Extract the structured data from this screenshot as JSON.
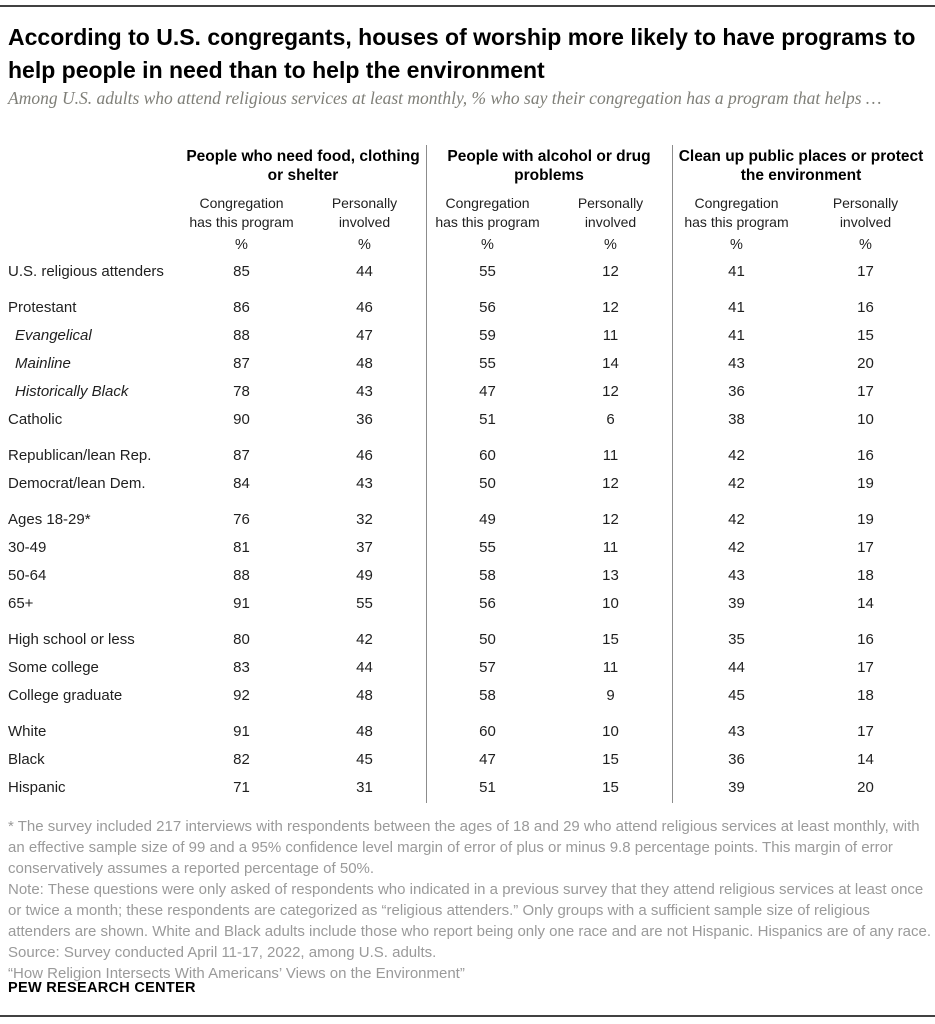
{
  "chart_data": {
    "type": "table",
    "title": "According to U.S. congregants, houses of worship more likely to have programs to help people in need than to help the environment",
    "subtitle": "Among U.S. adults who attend religious services at least monthly, % who say their congregation has a program that helps …",
    "unit": "%",
    "groups": [
      {
        "title": "People who need food, clothing or shelter"
      },
      {
        "title": "People with alcohol or drug problems"
      },
      {
        "title": "Clean up public places or protect the environment"
      }
    ],
    "subcolumns": [
      "Congregation has this program",
      "Personally involved"
    ],
    "columns": [
      "Food/clothing/shelter – Congregation has this program",
      "Food/clothing/shelter – Personally involved",
      "Alcohol/drug problems – Congregation has this program",
      "Alcohol/drug problems – Personally involved",
      "Clean up/protect environment – Congregation has this program",
      "Clean up/protect environment – Personally involved"
    ],
    "sections": [
      {
        "rows": [
          {
            "label": "U.S. religious attenders",
            "italic": false,
            "values": [
              85,
              44,
              55,
              12,
              41,
              17
            ]
          }
        ]
      },
      {
        "rows": [
          {
            "label": "Protestant",
            "italic": false,
            "values": [
              86,
              46,
              56,
              12,
              41,
              16
            ]
          },
          {
            "label": "Evangelical",
            "italic": true,
            "values": [
              88,
              47,
              59,
              11,
              41,
              15
            ]
          },
          {
            "label": "Mainline",
            "italic": true,
            "values": [
              87,
              48,
              55,
              14,
              43,
              20
            ]
          },
          {
            "label": "Historically Black",
            "italic": true,
            "values": [
              78,
              43,
              47,
              12,
              36,
              17
            ]
          },
          {
            "label": "Catholic",
            "italic": false,
            "values": [
              90,
              36,
              51,
              6,
              38,
              10
            ]
          }
        ]
      },
      {
        "rows": [
          {
            "label": "Republican/lean Rep.",
            "italic": false,
            "values": [
              87,
              46,
              60,
              11,
              42,
              16
            ]
          },
          {
            "label": "Democrat/lean Dem.",
            "italic": false,
            "values": [
              84,
              43,
              50,
              12,
              42,
              19
            ]
          }
        ]
      },
      {
        "rows": [
          {
            "label": "Ages 18-29*",
            "italic": false,
            "values": [
              76,
              32,
              49,
              12,
              42,
              19
            ]
          },
          {
            "label": "30-49",
            "italic": false,
            "values": [
              81,
              37,
              55,
              11,
              42,
              17
            ]
          },
          {
            "label": "50-64",
            "italic": false,
            "values": [
              88,
              49,
              58,
              13,
              43,
              18
            ]
          },
          {
            "label": "65+",
            "italic": false,
            "values": [
              91,
              55,
              56,
              10,
              39,
              14
            ]
          }
        ]
      },
      {
        "rows": [
          {
            "label": "High school or less",
            "italic": false,
            "values": [
              80,
              42,
              50,
              15,
              35,
              16
            ]
          },
          {
            "label": "Some college",
            "italic": false,
            "values": [
              83,
              44,
              57,
              11,
              44,
              17
            ]
          },
          {
            "label": "College graduate",
            "italic": false,
            "values": [
              92,
              48,
              58,
              9,
              45,
              18
            ]
          }
        ]
      },
      {
        "rows": [
          {
            "label": "White",
            "italic": false,
            "values": [
              91,
              48,
              60,
              10,
              43,
              17
            ]
          },
          {
            "label": "Black",
            "italic": false,
            "values": [
              82,
              45,
              47,
              15,
              36,
              14
            ]
          },
          {
            "label": "Hispanic",
            "italic": false,
            "values": [
              71,
              31,
              51,
              15,
              39,
              20
            ]
          }
        ]
      }
    ]
  },
  "footnotes": {
    "asterisk": "* The survey included 217 interviews with respondents between the ages of 18 and 29 who attend religious services at least monthly, with an effective sample size of 99 and a 95% confidence level margin of error of plus or minus 9.8 percentage points. This margin of error conservatively assumes a reported percentage of 50%.",
    "note": "Note: These questions were only asked of respondents who indicated in a previous survey that they attend religious services at least once or twice a month; these respondents are categorized as “religious attenders.” Only groups with a sufficient sample size of religious attenders are shown. White and Black adults include those who report being only one race and are not Hispanic. Hispanics are of any race.",
    "source": "Source: Survey conducted April 11-17, 2022, among U.S. adults.",
    "report": "“How Religion Intersects With Americans’ Views on the Environment”"
  },
  "footer": {
    "brand": "PEW RESEARCH CENTER"
  },
  "colors": {
    "title": "#000000",
    "subtitle": "#7f7f78",
    "notes": "#9a9a9a",
    "column_divider": "#8c8c8c",
    "page_rule": "#414141"
  }
}
